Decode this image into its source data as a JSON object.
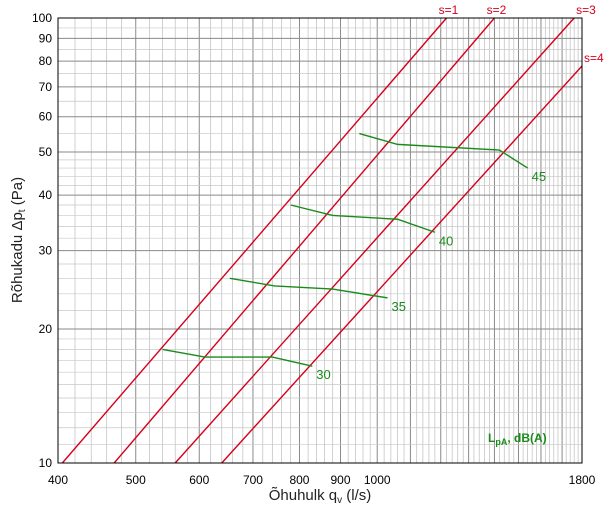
{
  "chart_data": {
    "type": "line",
    "x_scale": "log",
    "y_scale": "log",
    "xlim": [
      400,
      1800
    ],
    "ylim": [
      10,
      100
    ],
    "grid": true,
    "xlabel": "Õhuhulk q",
    "xlabel_sub": "v",
    "xlabel_unit": " (l/s)",
    "ylabel": "Rõhukadu Δp",
    "ylabel_sub": "t",
    "ylabel_unit": " (Pa)",
    "x_tick_labels": [
      {
        "value": 400,
        "label": "400"
      },
      {
        "value": 500,
        "label": "500"
      },
      {
        "value": 600,
        "label": "600"
      },
      {
        "value": 700,
        "label": "700"
      },
      {
        "value": 800,
        "label": "800"
      },
      {
        "value": 900,
        "label": "900"
      },
      {
        "value": 1000,
        "label": "1000"
      },
      {
        "value": 1800,
        "label": "1800"
      }
    ],
    "y_tick_labels": [
      {
        "value": 10,
        "label": "10"
      },
      {
        "value": 20,
        "label": "20"
      },
      {
        "value": 30,
        "label": "30"
      },
      {
        "value": 40,
        "label": "40"
      },
      {
        "value": 50,
        "label": "50"
      },
      {
        "value": 60,
        "label": "60"
      },
      {
        "value": 70,
        "label": "70"
      },
      {
        "value": 80,
        "label": "80"
      },
      {
        "value": 90,
        "label": "90"
      },
      {
        "value": 100,
        "label": "100"
      }
    ],
    "system_series": [
      {
        "name": "s=1",
        "points": [
          [
            405,
            10
          ],
          [
            1220,
            100
          ]
        ]
      },
      {
        "name": "s=2",
        "points": [
          [
            470,
            10
          ],
          [
            1400,
            100
          ]
        ]
      },
      {
        "name": "s=3",
        "points": [
          [
            560,
            10
          ],
          [
            1760,
            100
          ]
        ]
      },
      {
        "name": "s=4",
        "points": [
          [
            640,
            10
          ],
          [
            1800,
            78
          ]
        ]
      }
    ],
    "noise_series": [
      {
        "name": "30",
        "points": [
          [
            540,
            18
          ],
          [
            610,
            17.3
          ],
          [
            740,
            17.3
          ],
          [
            830,
            16.5
          ]
        ]
      },
      {
        "name": "35",
        "points": [
          [
            655,
            26
          ],
          [
            745,
            25
          ],
          [
            880,
            24.6
          ],
          [
            1030,
            23.5
          ]
        ]
      },
      {
        "name": "40",
        "points": [
          [
            780,
            38
          ],
          [
            880,
            36
          ],
          [
            1060,
            35.3
          ],
          [
            1180,
            33
          ]
        ]
      },
      {
        "name": "45",
        "points": [
          [
            950,
            55
          ],
          [
            1060,
            52
          ],
          [
            1420,
            50.5
          ],
          [
            1540,
            46
          ]
        ]
      }
    ],
    "legend_text_main": "L",
    "legend_text_sub": "pA",
    "legend_text_unit": ", dB(A)"
  }
}
